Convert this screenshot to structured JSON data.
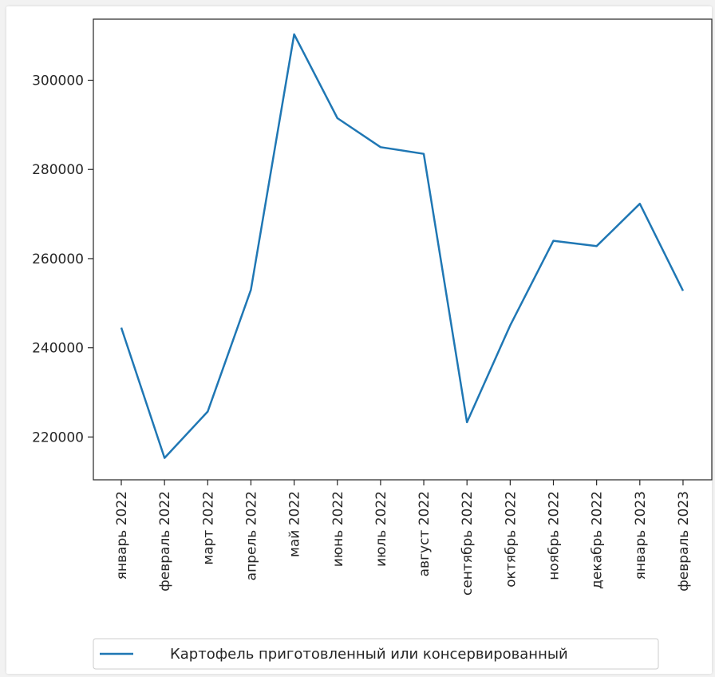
{
  "chart_data": {
    "type": "line",
    "title": "",
    "xlabel": "",
    "ylabel": "",
    "categories": [
      "январь 2022",
      "февраль 2022",
      "март 2022",
      "апрель 2022",
      "май 2022",
      "июнь 2022",
      "июль 2022",
      "август 2022",
      "сентябрь 2022",
      "октябрь 2022",
      "ноябрь 2022",
      "декабрь 2022",
      "январь 2023",
      "февраль 2023"
    ],
    "series": [
      {
        "name": "Картофель приготовленный или консервированный",
        "color": "#1f77b4",
        "values": [
          244500,
          215300,
          225700,
          253000,
          310300,
          291500,
          285000,
          283500,
          223300,
          245000,
          264000,
          262800,
          272300,
          252800
        ]
      }
    ],
    "ylim": [
      210400,
      313700
    ],
    "yticks": [
      220000,
      240000,
      260000,
      280000,
      300000
    ],
    "ytick_labels": [
      "220000",
      "240000",
      "260000",
      "280000",
      "300000"
    ],
    "grid": false,
    "legend_position": "bottom"
  }
}
